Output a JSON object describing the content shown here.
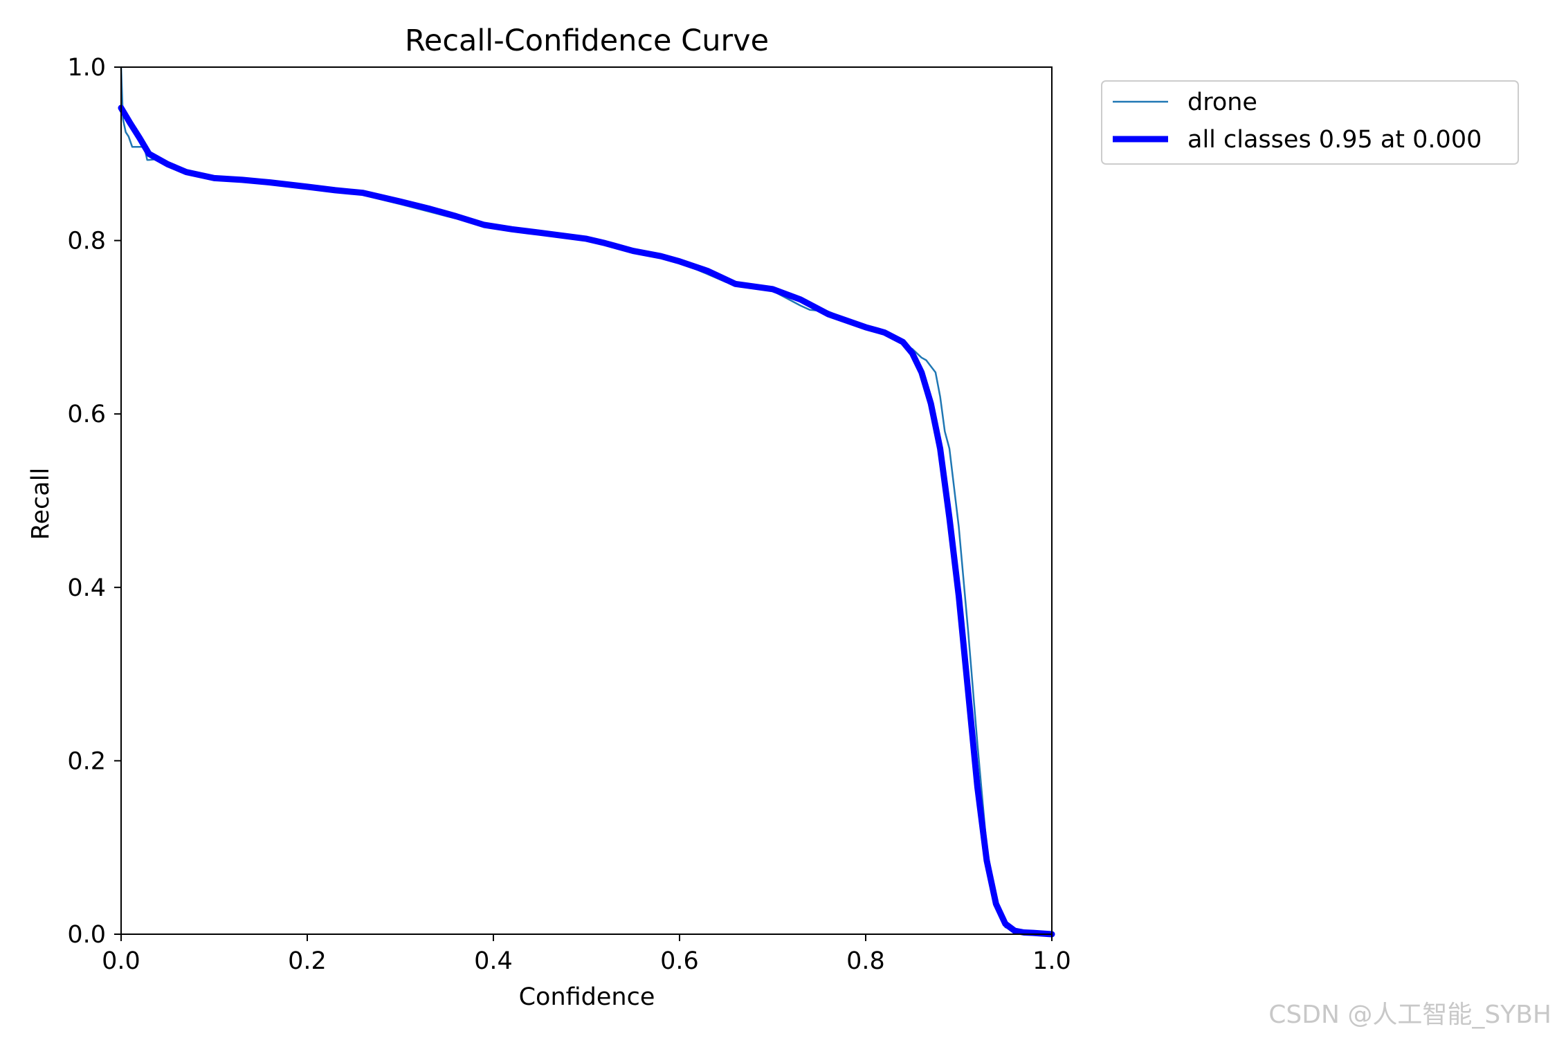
{
  "chart_data": {
    "type": "line",
    "title": "Recall-Confidence Curve",
    "xlabel": "Confidence",
    "ylabel": "Recall",
    "xlim": [
      0.0,
      1.0
    ],
    "ylim": [
      0.0,
      1.0
    ],
    "xticks": [
      "0.0",
      "0.2",
      "0.4",
      "0.6",
      "0.8",
      "1.0"
    ],
    "yticks": [
      "0.0",
      "0.2",
      "0.4",
      "0.6",
      "0.8",
      "1.0"
    ],
    "grid": false,
    "legend_position": "outside-top-right",
    "series": [
      {
        "name": "drone",
        "color": "#1f77b4",
        "x": [
          0.0,
          0.002,
          0.005,
          0.008,
          0.012,
          0.016,
          0.025,
          0.028,
          0.03,
          0.04,
          0.05,
          0.07,
          0.1,
          0.15,
          0.2,
          0.25,
          0.3,
          0.35,
          0.4,
          0.45,
          0.5,
          0.55,
          0.6,
          0.65,
          0.7,
          0.73,
          0.74,
          0.76,
          0.8,
          0.83,
          0.85,
          0.86,
          0.865,
          0.875,
          0.88,
          0.885,
          0.89,
          0.9,
          0.91,
          0.92,
          0.93,
          0.94,
          0.945,
          0.95,
          0.96,
          0.97,
          0.98,
          1.0
        ],
        "y": [
          1.0,
          0.94,
          0.925,
          0.92,
          0.908,
          0.908,
          0.908,
          0.893,
          0.893,
          0.894,
          0.888,
          0.878,
          0.872,
          0.868,
          0.862,
          0.855,
          0.842,
          0.828,
          0.815,
          0.807,
          0.802,
          0.787,
          0.775,
          0.752,
          0.742,
          0.725,
          0.72,
          0.718,
          0.7,
          0.688,
          0.675,
          0.665,
          0.662,
          0.648,
          0.62,
          0.58,
          0.56,
          0.47,
          0.35,
          0.22,
          0.1,
          0.04,
          0.025,
          0.008,
          0.004,
          0.001,
          0.0,
          0.0
        ]
      },
      {
        "name": "all classes 0.95 at 0.000",
        "color": "#0000ff",
        "x": [
          0.0,
          0.01,
          0.02,
          0.03,
          0.05,
          0.07,
          0.1,
          0.13,
          0.16,
          0.2,
          0.23,
          0.26,
          0.28,
          0.3,
          0.33,
          0.36,
          0.39,
          0.42,
          0.45,
          0.5,
          0.52,
          0.55,
          0.58,
          0.6,
          0.63,
          0.66,
          0.7,
          0.73,
          0.76,
          0.8,
          0.82,
          0.84,
          0.85,
          0.86,
          0.87,
          0.88,
          0.89,
          0.9,
          0.91,
          0.92,
          0.93,
          0.94,
          0.95,
          0.96,
          0.97,
          0.98,
          1.0
        ],
        "y": [
          0.953,
          0.935,
          0.918,
          0.9,
          0.888,
          0.879,
          0.872,
          0.87,
          0.867,
          0.862,
          0.858,
          0.855,
          0.85,
          0.845,
          0.837,
          0.828,
          0.818,
          0.813,
          0.809,
          0.802,
          0.797,
          0.788,
          0.782,
          0.776,
          0.765,
          0.75,
          0.744,
          0.732,
          0.715,
          0.7,
          0.694,
          0.683,
          0.67,
          0.648,
          0.612,
          0.56,
          0.48,
          0.39,
          0.28,
          0.17,
          0.085,
          0.035,
          0.012,
          0.004,
          0.002,
          0.0015,
          0.0
        ]
      }
    ]
  },
  "watermark": {
    "text": "CSDN @人工智能_SYBH",
    "color": "#c8c8c8"
  }
}
